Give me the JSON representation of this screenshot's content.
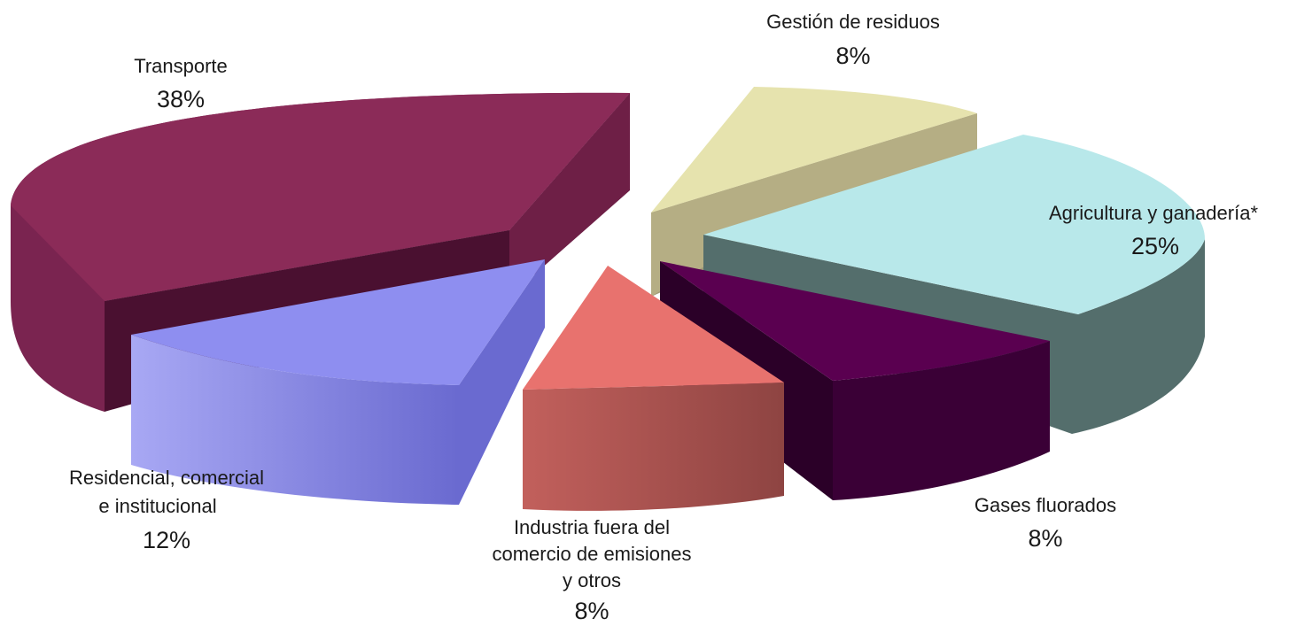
{
  "chart_data": {
    "type": "pie",
    "title": "",
    "style": "3d-exploded",
    "slices": [
      {
        "name": "Transporte",
        "name_lines": [
          "Transporte"
        ],
        "percent_label": "38%",
        "value": 38,
        "color": "#8b2b58"
      },
      {
        "name": "Gestión de residuos",
        "name_lines": [
          "Gestión de residuos"
        ],
        "percent_label": "8%",
        "value": 8,
        "color": "#e6e3ae"
      },
      {
        "name": "Agricultura y ganadería*",
        "name_lines": [
          "Agricultura y ganadería*"
        ],
        "percent_label": "25%",
        "value": 25,
        "color": "#b8e8ea"
      },
      {
        "name": "Gases fluorados",
        "name_lines": [
          "Gases fluorados"
        ],
        "percent_label": "8%",
        "value": 8,
        "color": "#5a0050"
      },
      {
        "name": "Industria fuera del comercio de emisiones y otros",
        "name_lines": [
          "Industria fuera del",
          "comercio de emisiones",
          "y otros"
        ],
        "percent_label": "8%",
        "value": 8,
        "color": "#e8726e"
      },
      {
        "name": "Residencial, comercial e institucional",
        "name_lines": [
          "Residencial, comercial",
          "e institucional"
        ],
        "percent_label": "12%",
        "value": 12,
        "color": "#8e8ef0"
      }
    ]
  }
}
